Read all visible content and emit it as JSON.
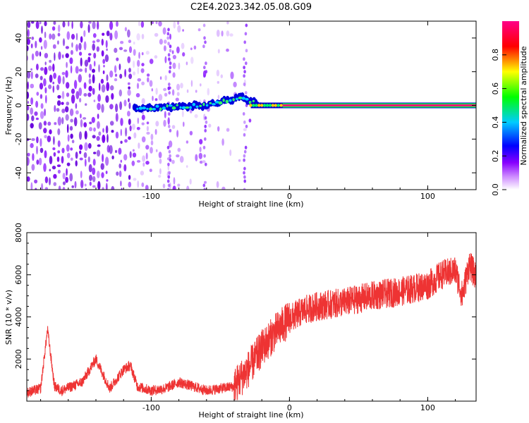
{
  "title": "C2E4.2023.342.05.08.G09",
  "chart_data": [
    {
      "type": "heatmap",
      "xlabel": "Height of straight line (km)",
      "ylabel": "Frequency (Hz)",
      "xlim": [
        -190,
        135
      ],
      "ylim": [
        -50,
        50
      ],
      "xticks": [
        -100,
        0,
        100
      ],
      "yticks": [
        -40,
        -20,
        0,
        20,
        40
      ],
      "colorbar": {
        "label": "Normalized spectral amplitude",
        "range": [
          0,
          1
        ],
        "ticks": [
          0.0,
          0.2,
          0.4,
          0.6,
          0.8
        ],
        "tick_labels": [
          "0.0",
          "0.2",
          "0.4",
          "0.6",
          "0.8"
        ],
        "colormap": [
          "#ffffff",
          "#9900ff",
          "#0000ff",
          "#00ffff",
          "#00ff00",
          "#ffff00",
          "#ff0000",
          "#ff0099"
        ]
      },
      "features": {
        "noise_region_x": [
          -190,
          -30
        ],
        "dense_noise_x": [
          -190,
          -115
        ],
        "signal_start_x": -112,
        "signal_track_x": [
          -112,
          -60,
          -35,
          -20,
          0,
          135
        ],
        "signal_track_y": [
          -2,
          0,
          5,
          0,
          0,
          0
        ]
      }
    },
    {
      "type": "line",
      "xlabel": "Height of straight line (km)",
      "ylabel": "SNR (10 * v/v)",
      "xlim": [
        -190,
        135
      ],
      "ylim": [
        0,
        8000
      ],
      "xticks": [
        -100,
        0,
        100
      ],
      "yticks": [
        2000,
        4000,
        6000,
        8000
      ],
      "line_color": "#ee3333",
      "x": [
        -190,
        -180,
        -175,
        -170,
        -165,
        -150,
        -140,
        -130,
        -120,
        -115,
        -110,
        -100,
        -90,
        -80,
        -60,
        -40,
        -30,
        -20,
        -10,
        0,
        10,
        20,
        40,
        60,
        80,
        100,
        110,
        120,
        125,
        130,
        135
      ],
      "y": [
        400,
        600,
        3400,
        700,
        500,
        900,
        2000,
        600,
        1500,
        1700,
        700,
        500,
        600,
        900,
        500,
        700,
        1500,
        2500,
        3300,
        3900,
        4300,
        4500,
        4700,
        5000,
        5200,
        5500,
        6000,
        6200,
        5000,
        6500,
        5900
      ]
    }
  ]
}
